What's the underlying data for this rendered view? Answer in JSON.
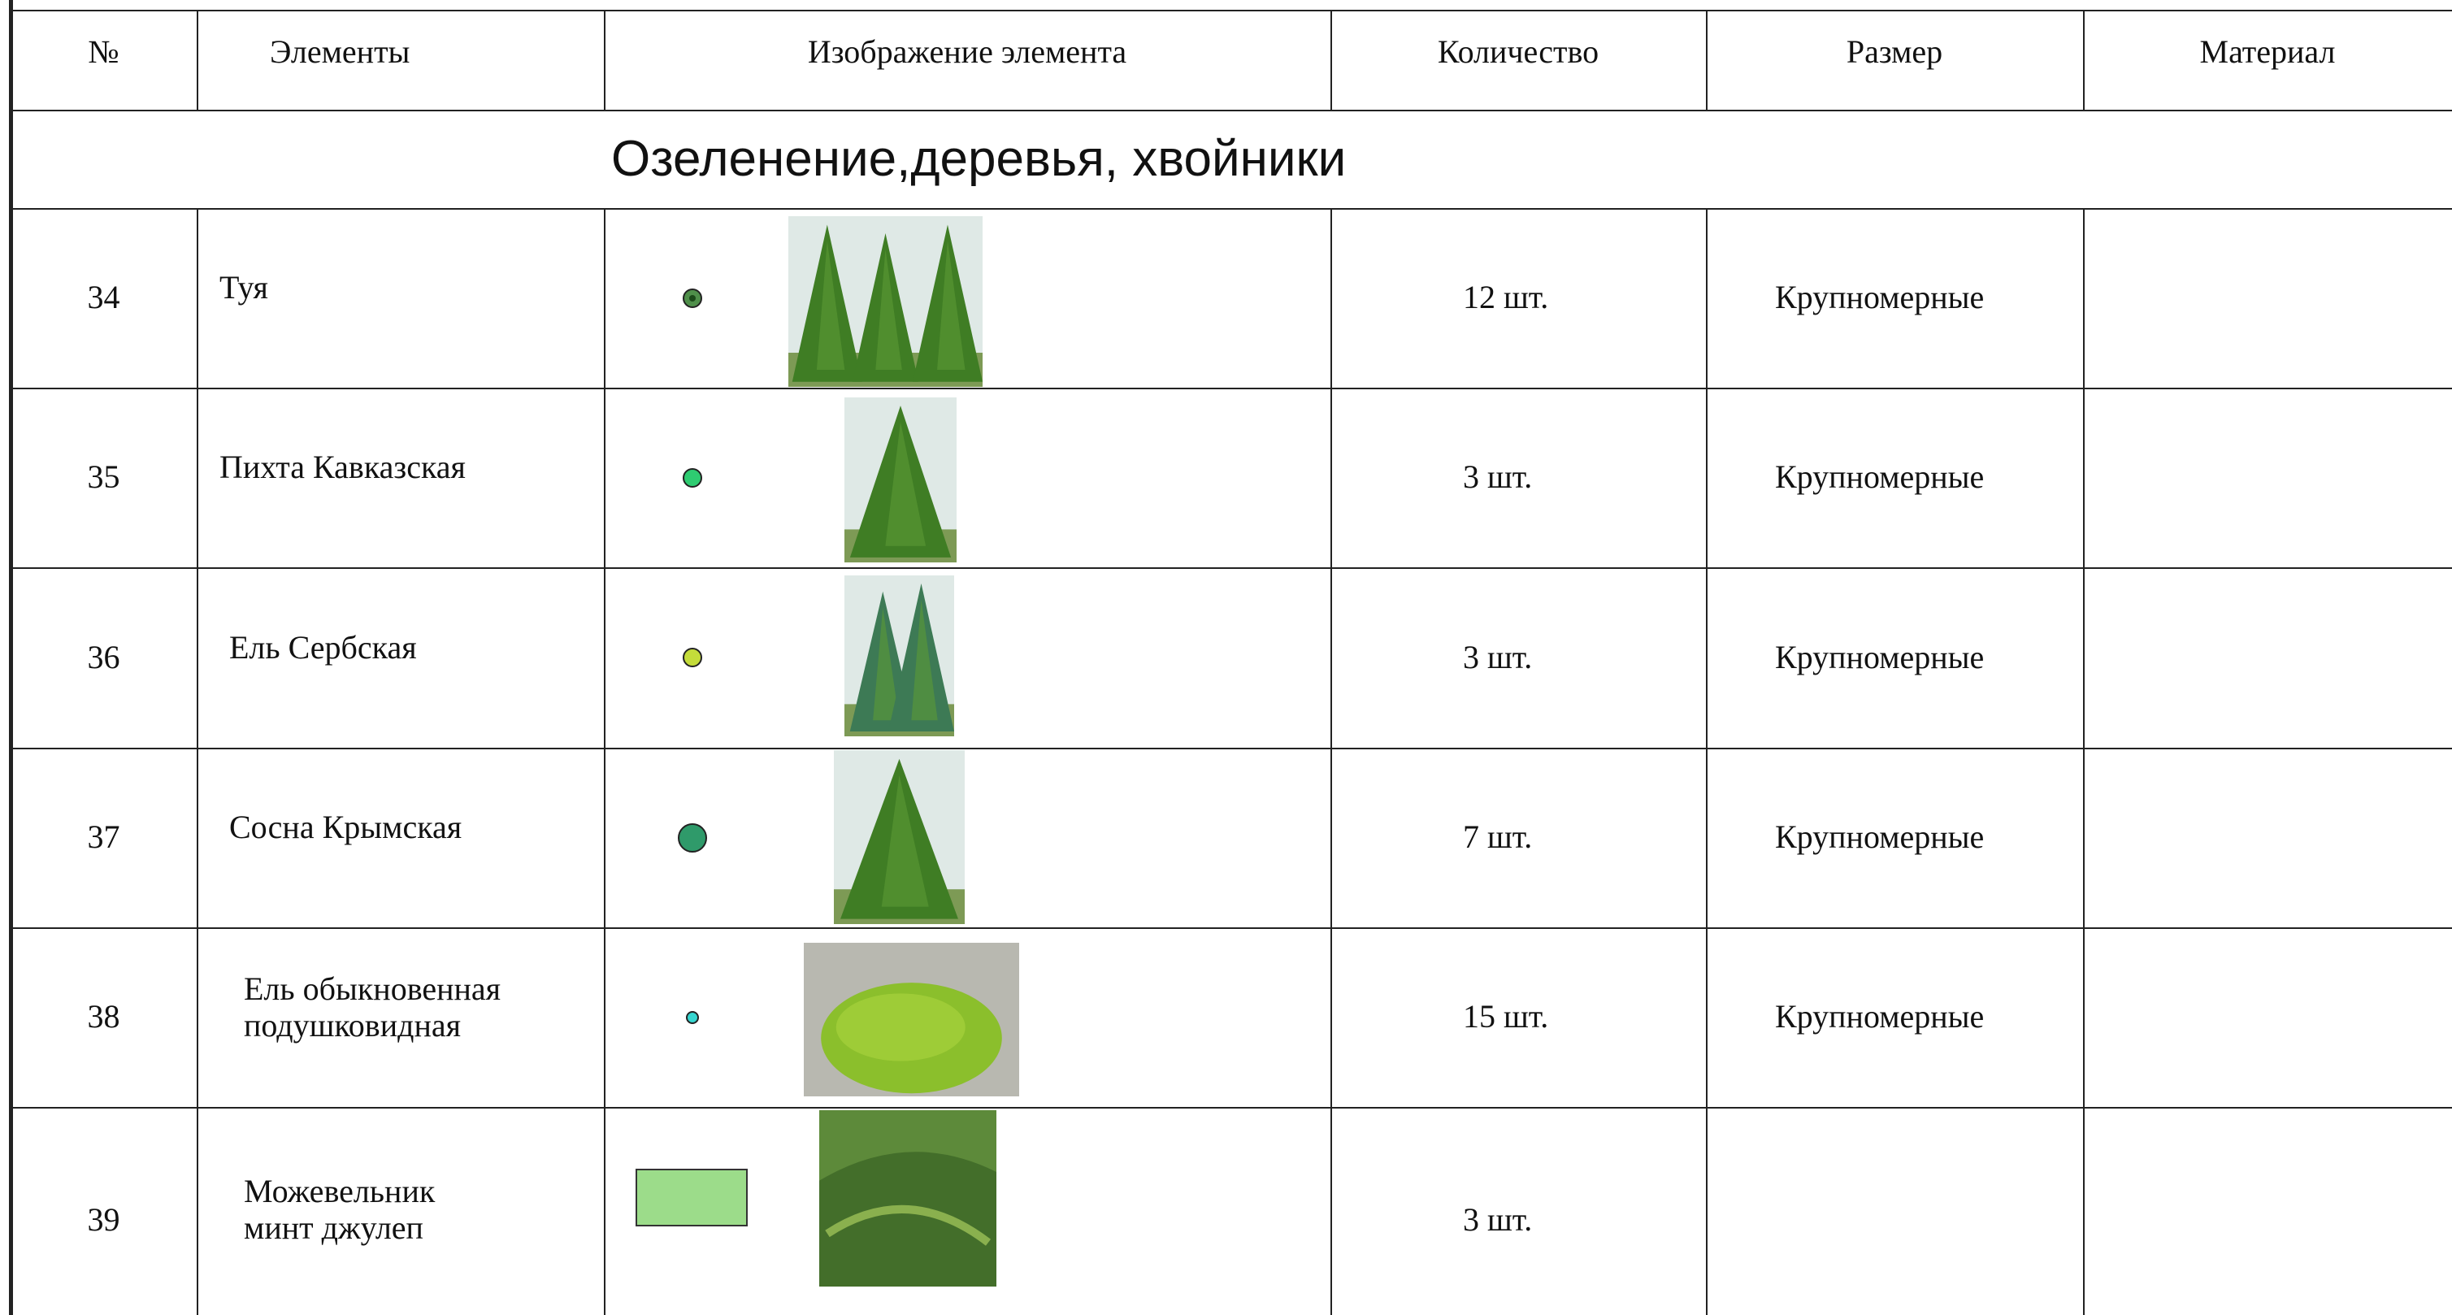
{
  "table": {
    "header": [
      "№",
      "Элементы",
      "Изображение элемента",
      "Количество",
      "Размер",
      "Материал"
    ],
    "section": "Озеленение,деревья, хвойники",
    "rows": [
      {
        "number": "34",
        "name": "Туя",
        "quantity": "12 шт.",
        "size": "Крупномерные"
      },
      {
        "number": "35",
        "name": "Пихта Кавказская",
        "quantity": "3 шт.",
        "size": "Крупномерные"
      },
      {
        "number": "36",
        "name": "Ель Сербская",
        "quantity": "3 шт.",
        "size": "Крупномерные"
      },
      {
        "number": "37",
        "name": "Сосна Крымская",
        "quantity": "7 шт.",
        "size": "Крупномерные"
      },
      {
        "number": "38",
        "name": "Ель обыкновенная\nподушковидная",
        "quantity": "15 шт.",
        "size": "Крупномерные"
      },
      {
        "number": "39",
        "name": "Можевельник\nминт джулеп",
        "quantity": "3 шт."
      }
    ]
  }
}
